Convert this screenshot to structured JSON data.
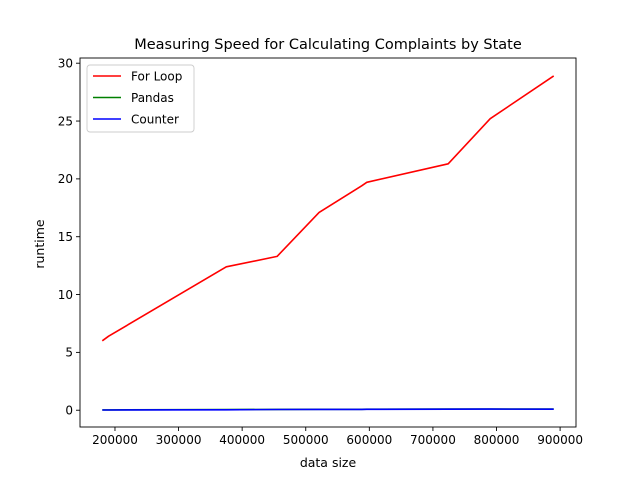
{
  "chart_data": {
    "type": "line",
    "title": "Measuring Speed for Calculating Complaints by State",
    "xlabel": "data size",
    "ylabel": "runtime",
    "xlim": [
      145000,
      925000
    ],
    "ylim": [
      -1.45,
      30.45
    ],
    "xticks": [
      200000,
      300000,
      400000,
      500000,
      600000,
      700000,
      800000,
      900000
    ],
    "xtick_labels": [
      "200000",
      "300000",
      "400000",
      "500000",
      "600000",
      "700000",
      "800000",
      "900000"
    ],
    "yticks": [
      0,
      5,
      10,
      15,
      20,
      25,
      30
    ],
    "ytick_labels": [
      "0",
      "5",
      "10",
      "15",
      "20",
      "25",
      "30"
    ],
    "grid": false,
    "legend": {
      "position": "upper-left",
      "entries": [
        "For Loop",
        "Pandas",
        "Counter"
      ]
    },
    "series": [
      {
        "name": "For Loop",
        "color": "#ff0000",
        "x": [
          180000,
          190000,
          375000,
          455000,
          521000,
          588000,
          596000,
          724000,
          790000,
          890000
        ],
        "y": [
          6.0,
          6.4,
          12.4,
          13.3,
          17.1,
          19.4,
          19.7,
          21.3,
          25.2,
          28.9
        ]
      },
      {
        "name": "Pandas",
        "color": "#008000",
        "x": [
          180000,
          190000,
          375000,
          455000,
          521000,
          588000,
          596000,
          724000,
          790000,
          890000
        ],
        "y": [
          0.03,
          0.03,
          0.05,
          0.07,
          0.08,
          0.08,
          0.09,
          0.1,
          0.11,
          0.1
        ]
      },
      {
        "name": "Counter",
        "color": "#0000ff",
        "x": [
          180000,
          190000,
          375000,
          455000,
          521000,
          588000,
          596000,
          724000,
          790000,
          890000
        ],
        "y": [
          0.02,
          0.02,
          0.04,
          0.06,
          0.07,
          0.07,
          0.08,
          0.09,
          0.1,
          0.09
        ]
      }
    ]
  }
}
